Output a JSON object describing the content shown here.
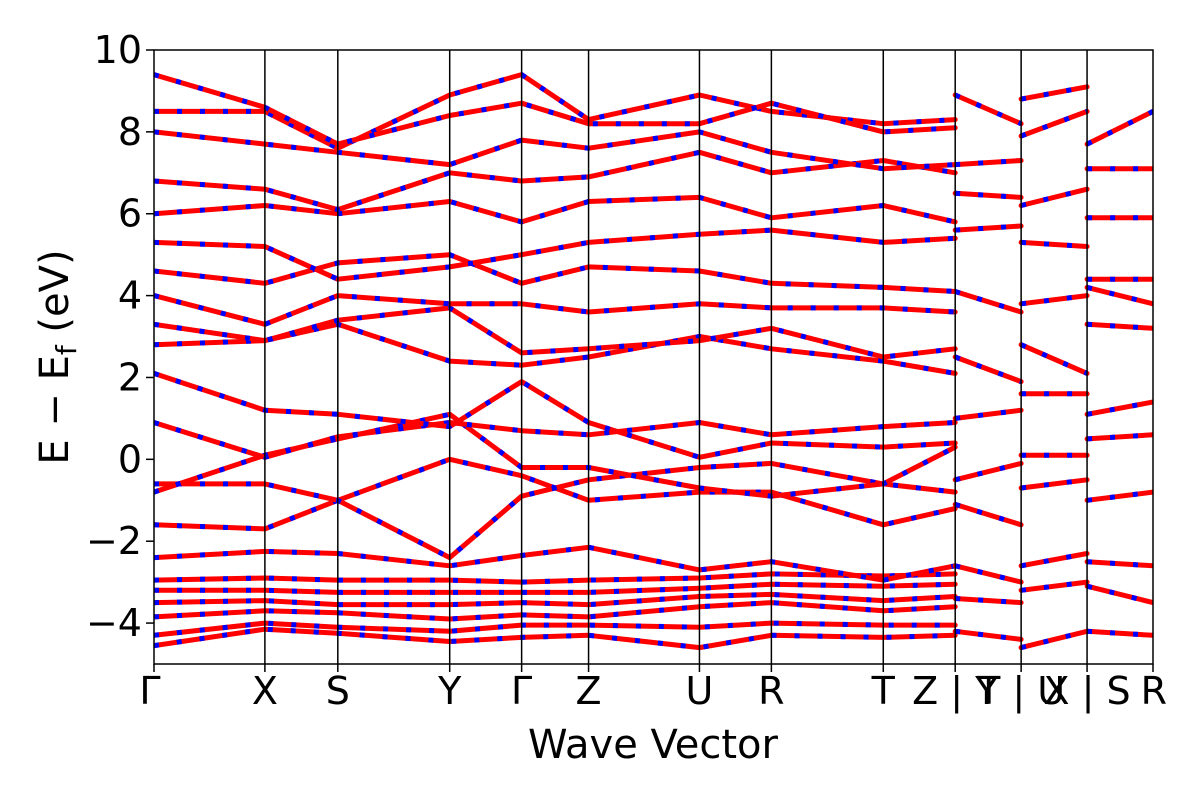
{
  "chart_data": {
    "type": "line",
    "title": "",
    "xlabel": "Wave Vector",
    "ylabel": "E − E",
    "ylabel_sub": "f",
    "ylabel_unit": " (eV)",
    "ylim": [
      -5,
      10
    ],
    "yticks": [
      {
        "value": -4,
        "label": "−4"
      },
      {
        "value": -2,
        "label": "−2"
      },
      {
        "value": 0,
        "label": "0"
      },
      {
        "value": 2,
        "label": "2"
      },
      {
        "value": 4,
        "label": "4"
      },
      {
        "value": 6,
        "label": "6"
      },
      {
        "value": 8,
        "label": "8"
      },
      {
        "value": 10,
        "label": "10"
      }
    ],
    "kpath_ticks": [
      {
        "k": 0.0,
        "label": "Γ"
      },
      {
        "k": 0.111,
        "label": "X"
      },
      {
        "k": 0.184,
        "label": "S"
      },
      {
        "k": 0.296,
        "label": "Y"
      },
      {
        "k": 0.368,
        "label": "Γ"
      },
      {
        "k": 0.435,
        "label": "Z"
      },
      {
        "k": 0.546,
        "label": "U"
      },
      {
        "k": 0.618,
        "label": "R"
      },
      {
        "k": 0.73,
        "label": "T"
      },
      {
        "k": 0.802,
        "label": "Z | Y"
      },
      {
        "k": 0.868,
        "label": "T | U"
      },
      {
        "k": 0.934,
        "label": "X | S"
      },
      {
        "k": 1.0,
        "label": "R"
      }
    ],
    "series_style": [
      {
        "color": "#ff0000",
        "style": "solid"
      },
      {
        "color": "#0000ff",
        "style": "dashed"
      }
    ],
    "note_bands": "Electronic band dispersion; each band drawn as red solid line overlaid with blue dashes (values estimated, selected bands).",
    "bands": [
      [
        [
          0.0,
          -4.55
        ],
        [
          0.111,
          -4.15
        ],
        [
          0.184,
          -4.25
        ],
        [
          0.296,
          -4.45
        ],
        [
          0.368,
          -4.35
        ],
        [
          0.435,
          -4.3
        ],
        [
          0.546,
          -4.6
        ],
        [
          0.618,
          -4.3
        ],
        [
          0.73,
          -4.35
        ],
        [
          0.802,
          -4.3
        ]
      ],
      [
        [
          0.0,
          -4.3
        ],
        [
          0.111,
          -4.0
        ],
        [
          0.184,
          -4.1
        ],
        [
          0.296,
          -4.2
        ],
        [
          0.368,
          -4.05
        ],
        [
          0.435,
          -4.05
        ],
        [
          0.546,
          -4.1
        ],
        [
          0.618,
          -4.0
        ],
        [
          0.73,
          -4.05
        ],
        [
          0.802,
          -4.05
        ]
      ],
      [
        [
          0.0,
          -3.85
        ],
        [
          0.111,
          -3.7
        ],
        [
          0.184,
          -3.75
        ],
        [
          0.296,
          -3.9
        ],
        [
          0.368,
          -3.8
        ],
        [
          0.435,
          -3.85
        ],
        [
          0.546,
          -3.6
        ],
        [
          0.618,
          -3.5
        ],
        [
          0.73,
          -3.7
        ],
        [
          0.802,
          -3.6
        ]
      ],
      [
        [
          0.0,
          -3.5
        ],
        [
          0.111,
          -3.45
        ],
        [
          0.184,
          -3.55
        ],
        [
          0.296,
          -3.55
        ],
        [
          0.368,
          -3.5
        ],
        [
          0.435,
          -3.55
        ],
        [
          0.546,
          -3.35
        ],
        [
          0.618,
          -3.3
        ],
        [
          0.73,
          -3.45
        ],
        [
          0.802,
          -3.35
        ]
      ],
      [
        [
          0.0,
          -3.2
        ],
        [
          0.111,
          -3.2
        ],
        [
          0.184,
          -3.25
        ],
        [
          0.296,
          -3.25
        ],
        [
          0.368,
          -3.25
        ],
        [
          0.435,
          -3.25
        ],
        [
          0.546,
          -3.15
        ],
        [
          0.618,
          -3.05
        ],
        [
          0.73,
          -3.1
        ],
        [
          0.802,
          -3.05
        ]
      ],
      [
        [
          0.0,
          -2.95
        ],
        [
          0.111,
          -2.9
        ],
        [
          0.184,
          -2.95
        ],
        [
          0.296,
          -2.95
        ],
        [
          0.368,
          -3.0
        ],
        [
          0.435,
          -2.95
        ],
        [
          0.546,
          -2.9
        ],
        [
          0.618,
          -2.8
        ],
        [
          0.73,
          -2.85
        ],
        [
          0.802,
          -2.8
        ]
      ],
      [
        [
          0.0,
          -2.4
        ],
        [
          0.111,
          -2.25
        ],
        [
          0.184,
          -2.3
        ],
        [
          0.296,
          -2.6
        ],
        [
          0.368,
          -2.35
        ],
        [
          0.435,
          -2.15
        ],
        [
          0.546,
          -2.7
        ],
        [
          0.618,
          -2.5
        ],
        [
          0.73,
          -2.95
        ],
        [
          0.802,
          -2.6
        ]
      ],
      [
        [
          0.0,
          -1.6
        ],
        [
          0.111,
          -1.7
        ],
        [
          0.184,
          -1.0
        ],
        [
          0.296,
          0.0
        ],
        [
          0.368,
          -0.4
        ],
        [
          0.435,
          -1.0
        ],
        [
          0.546,
          -0.8
        ],
        [
          0.618,
          -0.8
        ],
        [
          0.73,
          -1.6
        ],
        [
          0.802,
          -1.2
        ]
      ],
      [
        [
          0.0,
          -0.6
        ],
        [
          0.111,
          -0.6
        ],
        [
          0.184,
          -1.0
        ],
        [
          0.296,
          -2.4
        ],
        [
          0.368,
          -0.9
        ],
        [
          0.435,
          -0.5
        ],
        [
          0.546,
          -0.2
        ],
        [
          0.618,
          -0.1
        ],
        [
          0.73,
          -0.6
        ],
        [
          0.802,
          -0.8
        ]
      ],
      [
        [
          0.0,
          -0.8
        ],
        [
          0.111,
          0.1
        ],
        [
          0.184,
          0.5
        ],
        [
          0.296,
          1.1
        ],
        [
          0.368,
          -0.2
        ],
        [
          0.435,
          -0.2
        ],
        [
          0.546,
          -0.7
        ],
        [
          0.618,
          -0.9
        ],
        [
          0.73,
          -0.6
        ],
        [
          0.802,
          0.3
        ]
      ],
      [
        [
          0.0,
          0.9
        ],
        [
          0.111,
          0.05
        ],
        [
          0.184,
          0.55
        ],
        [
          0.296,
          0.9
        ],
        [
          0.368,
          0.7
        ],
        [
          0.435,
          0.6
        ],
        [
          0.546,
          0.9
        ],
        [
          0.618,
          0.6
        ],
        [
          0.73,
          0.8
        ],
        [
          0.802,
          0.9
        ]
      ],
      [
        [
          0.0,
          2.1
        ],
        [
          0.111,
          1.2
        ],
        [
          0.184,
          1.1
        ],
        [
          0.296,
          0.8
        ],
        [
          0.368,
          1.9
        ],
        [
          0.435,
          0.9
        ],
        [
          0.546,
          0.05
        ],
        [
          0.618,
          0.4
        ],
        [
          0.73,
          0.3
        ],
        [
          0.802,
          0.4
        ]
      ],
      [
        [
          0.0,
          2.8
        ],
        [
          0.111,
          2.9
        ],
        [
          0.184,
          3.3
        ],
        [
          0.296,
          2.4
        ],
        [
          0.368,
          2.3
        ],
        [
          0.435,
          2.5
        ],
        [
          0.546,
          3.0
        ],
        [
          0.618,
          2.7
        ],
        [
          0.73,
          2.4
        ],
        [
          0.802,
          2.1
        ]
      ],
      [
        [
          0.0,
          3.3
        ],
        [
          0.111,
          2.9
        ],
        [
          0.184,
          3.4
        ],
        [
          0.296,
          3.7
        ],
        [
          0.368,
          2.6
        ],
        [
          0.435,
          2.7
        ],
        [
          0.546,
          2.9
        ],
        [
          0.618,
          3.2
        ],
        [
          0.73,
          2.5
        ],
        [
          0.802,
          2.7
        ]
      ],
      [
        [
          0.0,
          4.0
        ],
        [
          0.111,
          3.3
        ],
        [
          0.184,
          4.0
        ],
        [
          0.296,
          3.8
        ],
        [
          0.368,
          3.8
        ],
        [
          0.435,
          3.6
        ],
        [
          0.546,
          3.8
        ],
        [
          0.618,
          3.7
        ],
        [
          0.73,
          3.7
        ],
        [
          0.802,
          3.6
        ]
      ],
      [
        [
          0.0,
          4.6
        ],
        [
          0.111,
          4.3
        ],
        [
          0.184,
          4.8
        ],
        [
          0.296,
          5.0
        ],
        [
          0.368,
          4.3
        ],
        [
          0.435,
          4.7
        ],
        [
          0.546,
          4.6
        ],
        [
          0.618,
          4.3
        ],
        [
          0.73,
          4.2
        ],
        [
          0.802,
          4.1
        ]
      ],
      [
        [
          0.0,
          5.3
        ],
        [
          0.111,
          5.2
        ],
        [
          0.184,
          4.4
        ],
        [
          0.296,
          4.7
        ],
        [
          0.368,
          5.0
        ],
        [
          0.435,
          5.3
        ],
        [
          0.546,
          5.5
        ],
        [
          0.618,
          5.6
        ],
        [
          0.73,
          5.3
        ],
        [
          0.802,
          5.4
        ]
      ],
      [
        [
          0.0,
          6.0
        ],
        [
          0.111,
          6.2
        ],
        [
          0.184,
          6.0
        ],
        [
          0.296,
          6.3
        ],
        [
          0.368,
          5.8
        ],
        [
          0.435,
          6.3
        ],
        [
          0.546,
          6.4
        ],
        [
          0.618,
          5.9
        ],
        [
          0.73,
          6.2
        ],
        [
          0.802,
          5.8
        ]
      ],
      [
        [
          0.0,
          6.8
        ],
        [
          0.111,
          6.6
        ],
        [
          0.184,
          6.1
        ],
        [
          0.296,
          7.0
        ],
        [
          0.368,
          6.8
        ],
        [
          0.435,
          6.9
        ],
        [
          0.546,
          7.5
        ],
        [
          0.618,
          7.0
        ],
        [
          0.73,
          7.3
        ],
        [
          0.802,
          7.0
        ]
      ],
      [
        [
          0.0,
          8.0
        ],
        [
          0.111,
          7.7
        ],
        [
          0.184,
          7.5
        ],
        [
          0.296,
          7.2
        ],
        [
          0.368,
          7.8
        ],
        [
          0.435,
          7.6
        ],
        [
          0.546,
          8.0
        ],
        [
          0.618,
          7.5
        ],
        [
          0.73,
          7.1
        ],
        [
          0.802,
          7.2
        ]
      ],
      [
        [
          0.0,
          8.5
        ],
        [
          0.111,
          8.5
        ],
        [
          0.184,
          7.6
        ],
        [
          0.296,
          8.9
        ],
        [
          0.368,
          9.4
        ],
        [
          0.435,
          8.3
        ],
        [
          0.546,
          8.9
        ],
        [
          0.618,
          8.5
        ],
        [
          0.73,
          8.2
        ],
        [
          0.802,
          8.3
        ]
      ],
      [
        [
          0.0,
          9.4
        ],
        [
          0.111,
          8.6
        ],
        [
          0.184,
          7.7
        ],
        [
          0.296,
          8.4
        ],
        [
          0.368,
          8.7
        ],
        [
          0.435,
          8.2
        ],
        [
          0.546,
          8.2
        ],
        [
          0.618,
          8.7
        ],
        [
          0.73,
          8.0
        ],
        [
          0.802,
          8.1
        ]
      ],
      [
        [
          0.802,
          8.9
        ],
        [
          0.868,
          8.2
        ]
      ],
      [
        [
          0.802,
          7.2
        ],
        [
          0.868,
          7.3
        ]
      ],
      [
        [
          0.802,
          6.5
        ],
        [
          0.868,
          6.4
        ]
      ],
      [
        [
          0.802,
          5.6
        ],
        [
          0.868,
          5.7
        ]
      ],
      [
        [
          0.802,
          4.1
        ],
        [
          0.868,
          3.6
        ]
      ],
      [
        [
          0.802,
          2.5
        ],
        [
          0.868,
          1.9
        ]
      ],
      [
        [
          0.802,
          1.0
        ],
        [
          0.868,
          1.2
        ]
      ],
      [
        [
          0.802,
          -0.5
        ],
        [
          0.868,
          -0.1
        ]
      ],
      [
        [
          0.802,
          -1.1
        ],
        [
          0.868,
          -1.6
        ]
      ],
      [
        [
          0.802,
          -2.6
        ],
        [
          0.868,
          -3.0
        ]
      ],
      [
        [
          0.802,
          -3.4
        ],
        [
          0.868,
          -3.5
        ]
      ],
      [
        [
          0.802,
          -4.2
        ],
        [
          0.868,
          -4.4
        ]
      ],
      [
        [
          0.868,
          8.8
        ],
        [
          0.934,
          9.1
        ]
      ],
      [
        [
          0.868,
          7.9
        ],
        [
          0.934,
          8.5
        ]
      ],
      [
        [
          0.868,
          6.2
        ],
        [
          0.934,
          6.6
        ]
      ],
      [
        [
          0.868,
          5.3
        ],
        [
          0.934,
          5.2
        ]
      ],
      [
        [
          0.868,
          3.8
        ],
        [
          0.934,
          4.0
        ]
      ],
      [
        [
          0.868,
          2.8
        ],
        [
          0.934,
          2.1
        ]
      ],
      [
        [
          0.868,
          1.6
        ],
        [
          0.934,
          1.6
        ]
      ],
      [
        [
          0.868,
          0.1
        ],
        [
          0.934,
          0.1
        ]
      ],
      [
        [
          0.868,
          -0.7
        ],
        [
          0.934,
          -0.5
        ]
      ],
      [
        [
          0.868,
          -2.6
        ],
        [
          0.934,
          -2.3
        ]
      ],
      [
        [
          0.868,
          -3.2
        ],
        [
          0.934,
          -3.0
        ]
      ],
      [
        [
          0.868,
          -4.6
        ],
        [
          0.934,
          -4.2
        ]
      ],
      [
        [
          0.934,
          7.7
        ],
        [
          1.0,
          8.5
        ]
      ],
      [
        [
          0.934,
          7.1
        ],
        [
          1.0,
          7.1
        ]
      ],
      [
        [
          0.934,
          5.9
        ],
        [
          1.0,
          5.9
        ]
      ],
      [
        [
          0.934,
          4.4
        ],
        [
          1.0,
          4.4
        ]
      ],
      [
        [
          0.934,
          4.2
        ],
        [
          1.0,
          3.8
        ]
      ],
      [
        [
          0.934,
          3.3
        ],
        [
          1.0,
          3.2
        ]
      ],
      [
        [
          0.934,
          1.1
        ],
        [
          1.0,
          1.4
        ]
      ],
      [
        [
          0.934,
          0.5
        ],
        [
          1.0,
          0.6
        ]
      ],
      [
        [
          0.934,
          -1.0
        ],
        [
          1.0,
          -0.8
        ]
      ],
      [
        [
          0.934,
          -2.5
        ],
        [
          1.0,
          -2.6
        ]
      ],
      [
        [
          0.934,
          -3.1
        ],
        [
          1.0,
          -3.5
        ]
      ],
      [
        [
          0.934,
          -4.2
        ],
        [
          1.0,
          -4.3
        ]
      ]
    ]
  }
}
